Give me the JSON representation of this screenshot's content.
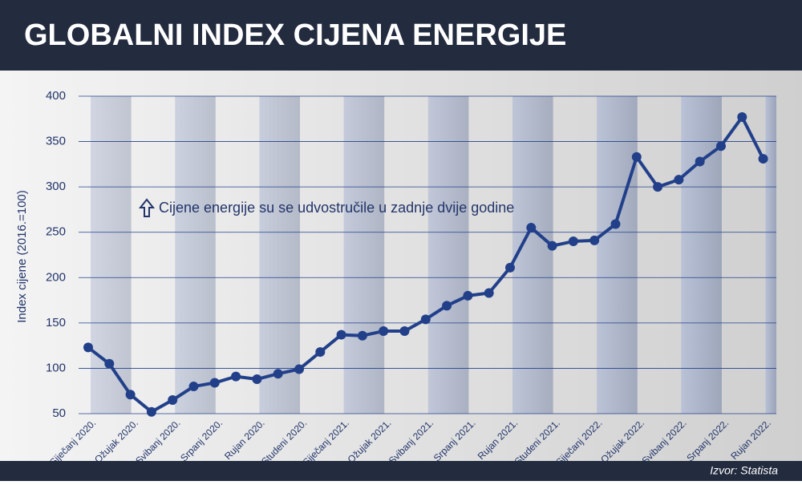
{
  "chart_data": {
    "type": "line",
    "title": "GLOBALNI INDEX CIJENA ENERGIJE",
    "y_label": "Index cijene (2016.=100)",
    "annotation": "Cijene energije su se udvostručile u zadnje dvije godine",
    "source": "Izvor: Statista",
    "categories": [
      "Siječanj 2020.",
      null,
      "Ožujak 2020.",
      null,
      "Svibanj 2020.",
      null,
      "Srpanj 2020.",
      null,
      "Rujan 2020.",
      null,
      "Studeni 2020.",
      null,
      "Siječanj 2021.",
      null,
      "Ožujak 2021.",
      null,
      "Svibanj 2021.",
      null,
      "Srpanj 2021.",
      null,
      "Rujan 2021.",
      null,
      "Studeni 2021.",
      null,
      "Siječanj 2022.",
      null,
      "Ožujak 2022.",
      null,
      "Svibanj 2022.",
      null,
      "Srpanj 2022.",
      null,
      "Rujan 2022."
    ],
    "values": [
      123,
      105,
      71,
      52,
      65,
      80,
      84,
      91,
      88,
      94,
      99,
      118,
      137,
      136,
      141,
      141,
      154,
      169,
      180,
      183,
      211,
      255,
      235,
      240,
      241,
      259,
      333,
      300,
      308,
      328,
      345,
      377,
      331
    ],
    "color": "#22408a",
    "ylim": [
      50,
      400
    ],
    "yticks": [
      50,
      100,
      150,
      200,
      250,
      300,
      350,
      400
    ],
    "grid": true
  }
}
